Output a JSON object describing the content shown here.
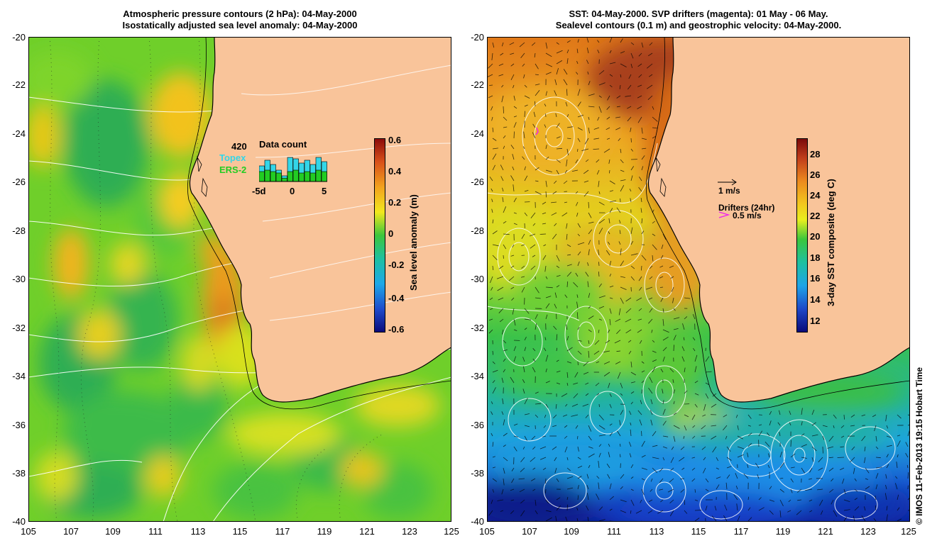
{
  "left_panel": {
    "title_line1": "Atmospheric pressure contours (2 hPa): 04-May-2000",
    "title_line2": "Isostatically adjusted sea level anomaly: 04-May-2000",
    "colorbar": {
      "label": "Sea level anomaly (m)",
      "ticks": [
        "0.6",
        "0.4",
        "0.2",
        "0",
        "-0.2",
        "-0.4",
        "-0.6"
      ]
    },
    "inset": {
      "count": "420",
      "title": "Data count",
      "topex_label": "Topex",
      "ers_label": "ERS-2",
      "x_ticks": [
        "-5d",
        "0",
        "5"
      ],
      "topex_color": "#33d6e8",
      "ers_color": "#22cc22"
    }
  },
  "right_panel": {
    "title_line1": "SST: 04-May-2000. SVP drifters (magenta): 01 May - 06 May.",
    "title_line2": "Sealevel contours (0.1 m) and geostrophic velocity: 04-May-2000.",
    "colorbar": {
      "label": "3-day SST composite (deg C)",
      "ticks": [
        "28",
        "26",
        "24",
        "22",
        "20",
        "18",
        "16",
        "14",
        "12"
      ]
    },
    "velocity_scale": "1 m/s",
    "drifter_label": "Drifters (24hr)",
    "drifter_scale": "0.5 m/s",
    "drifter_color": "#ee22ee"
  },
  "axes": {
    "lat_ticks": [
      "-20",
      "-22",
      "-24",
      "-26",
      "-28",
      "-30",
      "-32",
      "-34",
      "-36",
      "-38",
      "-40"
    ],
    "lon_ticks": [
      "105",
      "107",
      "109",
      "111",
      "113",
      "115",
      "117",
      "119",
      "121",
      "123",
      "125"
    ]
  },
  "copyright": "© IMOS 11-Feb-2013 19:15 Hobart Time",
  "colors": {
    "land": "#f9c49a",
    "coast": "#000000",
    "contour": "#ffffff"
  }
}
